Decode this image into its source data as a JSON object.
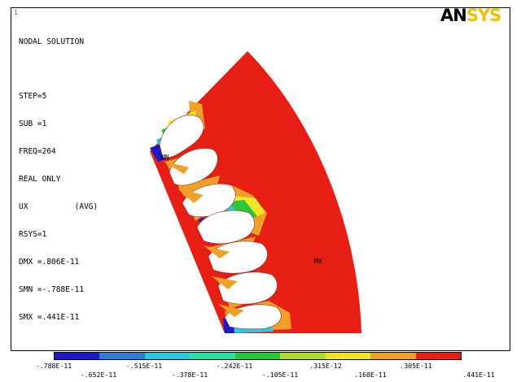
{
  "corner_id": "1",
  "info_lines": [
    "NODAL SOLUTION",
    "",
    "STEP=5",
    "SUB =1",
    "FREQ=264",
    "REAL ONLY",
    "UX          (AVG)",
    "RSYS=1",
    "DMX =.806E-11",
    "SMN =-.788E-11",
    "SMX =.441E-11"
  ],
  "logo": {
    "part1": "AN",
    "part2": "SYS"
  },
  "markers": {
    "mn": "MN",
    "mx": "MX"
  },
  "legend": {
    "colors": [
      "#1a1ac8",
      "#2a7fd4",
      "#28c8e6",
      "#2be0a6",
      "#28c83c",
      "#aadc28",
      "#f0e628",
      "#f0a028",
      "#e61e14"
    ],
    "labels_top": [
      "-.788E-11",
      "-.515E-11",
      "-.242E-11",
      ".315E-12",
      ".305E-11"
    ],
    "labels_bottom": [
      "-.652E-11",
      "-.378E-11",
      "-.105E-11",
      ".168E-11",
      ".441E-11"
    ]
  },
  "colors": {
    "max_red": "#e61e14",
    "orange": "#f0a028",
    "blue": "#1a1ac8"
  }
}
